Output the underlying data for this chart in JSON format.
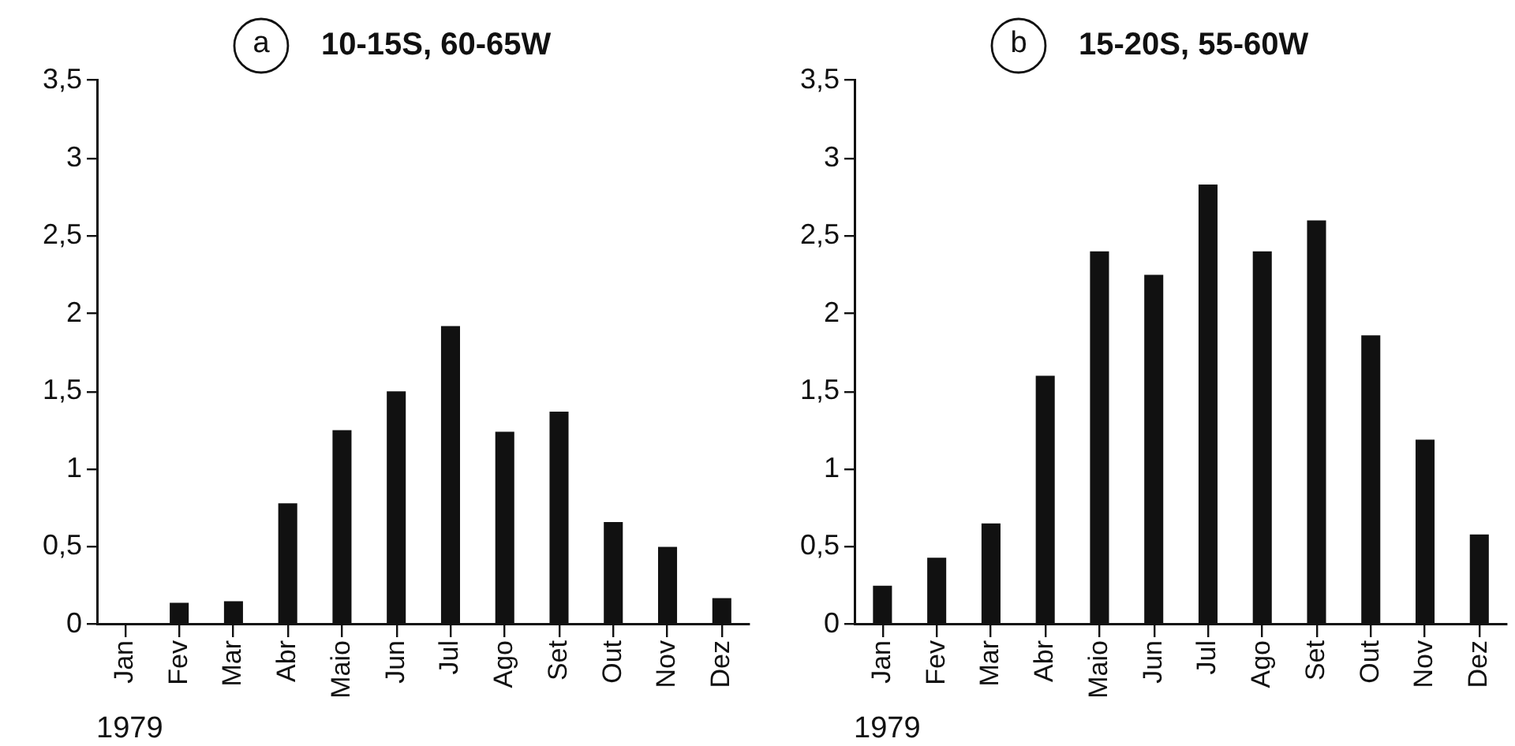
{
  "chart_data": [
    {
      "type": "bar",
      "title": "10-15S, 60-65W",
      "annotations": [
        "a",
        "1979"
      ],
      "categories": [
        "Jan",
        "Fev",
        "Mar",
        "Abr",
        "Maio",
        "Jun",
        "Jul",
        "Ago",
        "Set",
        "Out",
        "Nov",
        "Dez"
      ],
      "values": [
        0,
        0.14,
        0.15,
        0.78,
        1.25,
        1.5,
        1.92,
        1.24,
        1.37,
        0.66,
        0.5,
        0.17
      ],
      "color": "#111111",
      "ylim": [
        0,
        3.5
      ],
      "yticks": [
        0,
        {
          "value": 0.5,
          "label": "0,5"
        },
        1,
        {
          "value": 1.5,
          "label": "1,5"
        },
        2,
        {
          "value": 2.5,
          "label": "2,5"
        },
        3,
        {
          "value": 3.5,
          "label": "3,5"
        }
      ]
    },
    {
      "type": "bar",
      "title": "15-20S, 55-60W",
      "annotations": [
        "b",
        "1979"
      ],
      "categories": [
        "Jan",
        "Fev",
        "Mar",
        "Abr",
        "Maio",
        "Jun",
        "Jul",
        "Ago",
        "Set",
        "Out",
        "Nov",
        "Dez"
      ],
      "values": [
        0.25,
        0.43,
        0.65,
        1.6,
        2.4,
        2.25,
        2.83,
        2.4,
        2.6,
        1.86,
        1.19,
        0.58
      ],
      "color": "#111111",
      "ylim": [
        0,
        3.5
      ],
      "yticks": [
        0,
        {
          "value": 0.5,
          "label": "0,5"
        },
        1,
        {
          "value": 1.5,
          "label": "1,5"
        },
        2,
        {
          "value": 2.5,
          "label": "2,5"
        },
        3,
        {
          "value": 3.5,
          "label": "3,5"
        }
      ]
    }
  ]
}
